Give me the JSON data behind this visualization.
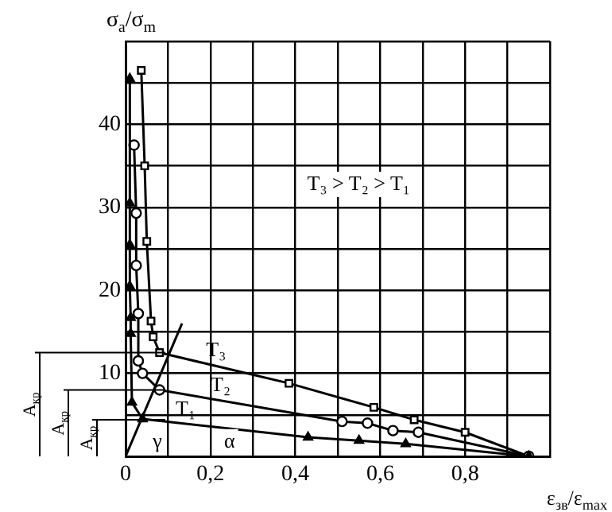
{
  "chart_data": {
    "type": "line",
    "xlabel": "ε$_{зв}$/ε$_{max}$",
    "ylabel": "σ$_{a}$/σ$_{m}$",
    "xlim": [
      0,
      1
    ],
    "ylim": [
      0,
      50
    ],
    "xticks": [
      0,
      {
        "value": 0.1,
        "label": null
      },
      {
        "value": 0.2,
        "label": "0,2"
      },
      {
        "value": 0.3,
        "label": null
      },
      {
        "value": 0.4,
        "label": "0,4"
      },
      {
        "value": 0.5,
        "label": null
      },
      {
        "value": 0.6,
        "label": "0,6"
      },
      {
        "value": 0.7,
        "label": null
      },
      {
        "value": 0.8,
        "label": "0,8"
      },
      {
        "value": 0.9,
        "label": null
      },
      {
        "value": 1,
        "label": null
      }
    ],
    "yticks": [
      {
        "value": 0,
        "label": null
      },
      {
        "value": 5,
        "label": null
      },
      10,
      {
        "value": 15,
        "label": null
      },
      20,
      {
        "value": 25,
        "label": null
      },
      30,
      {
        "value": 35,
        "label": null
      },
      40,
      {
        "value": 45,
        "label": null
      },
      {
        "value": 50,
        "label": null
      }
    ],
    "grid": true,
    "series": [
      {
        "name": "T₁",
        "color": "#000000",
        "marker": "triangle",
        "x": [
          0.01,
          0.01,
          0.01,
          0.01,
          0.012,
          0.012,
          0.015,
          0.04,
          0.43,
          0.55,
          0.66,
          0.95
        ],
        "values": [
          45.5,
          30.5,
          25.5,
          20.5,
          16.7,
          14.8,
          6.5,
          4.5,
          2.3,
          1.9,
          1.5,
          0
        ]
      },
      {
        "name": "T₂",
        "color": "#000000",
        "marker": "circle",
        "x": [
          0.02,
          0.025,
          0.025,
          0.03,
          0.03,
          0.04,
          0.08,
          0.51,
          0.57,
          0.63,
          0.69,
          0.95
        ],
        "values": [
          37.5,
          29.3,
          23,
          17.2,
          11.5,
          10,
          8,
          4.2,
          4,
          3.1,
          2.9,
          0
        ]
      },
      {
        "name": "T₃",
        "color": "#000000",
        "marker": "square",
        "x": [
          0.037,
          0.045,
          0.05,
          0.06,
          0.065,
          0.08,
          0.385,
          0.585,
          0.68,
          0.8,
          0.95
        ],
        "values": [
          46.5,
          35,
          25.9,
          16.3,
          14.4,
          12.5,
          8.8,
          5.9,
          4.4,
          2.9,
          0
        ]
      },
      {
        "color": "#000000",
        "marker": "none",
        "x": [
          0,
          0.133
        ],
        "values": [
          0,
          16
        ]
      }
    ],
    "ref_lines": [
      {
        "axis": "y",
        "value": 12.5,
        "label": "A$_{кр}$"
      },
      {
        "axis": "y",
        "value": 8,
        "label": "A$_{кр}$"
      },
      {
        "axis": "y",
        "value": 4.4,
        "label": "A$_{кр}$"
      }
    ],
    "annotations": [
      "T₃ > T₂ > T₁",
      "γ",
      "α"
    ]
  }
}
